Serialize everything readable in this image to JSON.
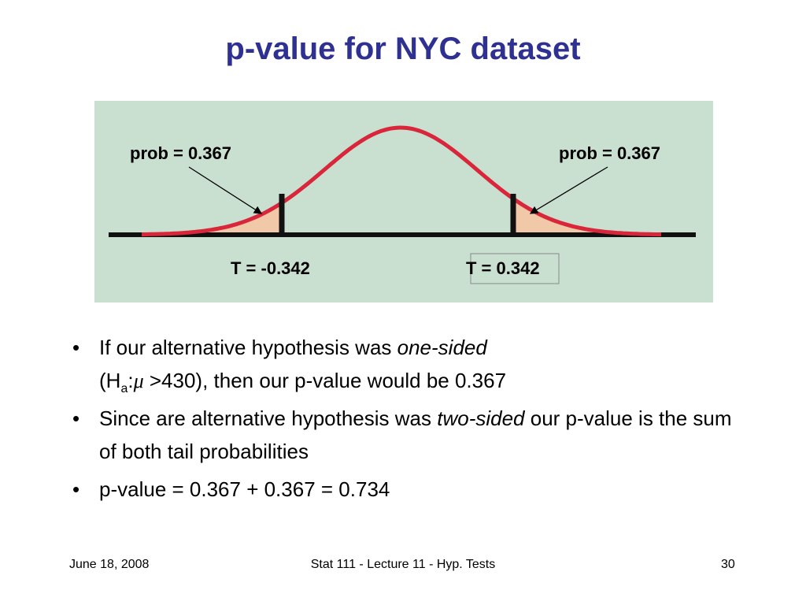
{
  "title": "p-value for NYC dataset",
  "figure": {
    "left_prob": "prob = 0.367",
    "right_prob": "prob = 0.367",
    "left_t": "T = -0.342",
    "right_t": "T = 0.342"
  },
  "bullets": [
    [
      "If our alternative hypothesis was ",
      "one-sided",
      "(H",
      "a",
      ":",
      "μ",
      " >430)",
      ", then our p-value would be 0.367"
    ],
    [
      "Since are alternative hypothesis was ",
      "two-sided",
      " our p-value is the sum of both tail probabilities"
    ],
    [
      "p-value = 0.367 + 0.367 = 0.734"
    ]
  ],
  "footer": {
    "date": "June 18, 2008",
    "course": "Stat 111 - Lecture 11 - Hyp. Tests",
    "page": "30"
  }
}
